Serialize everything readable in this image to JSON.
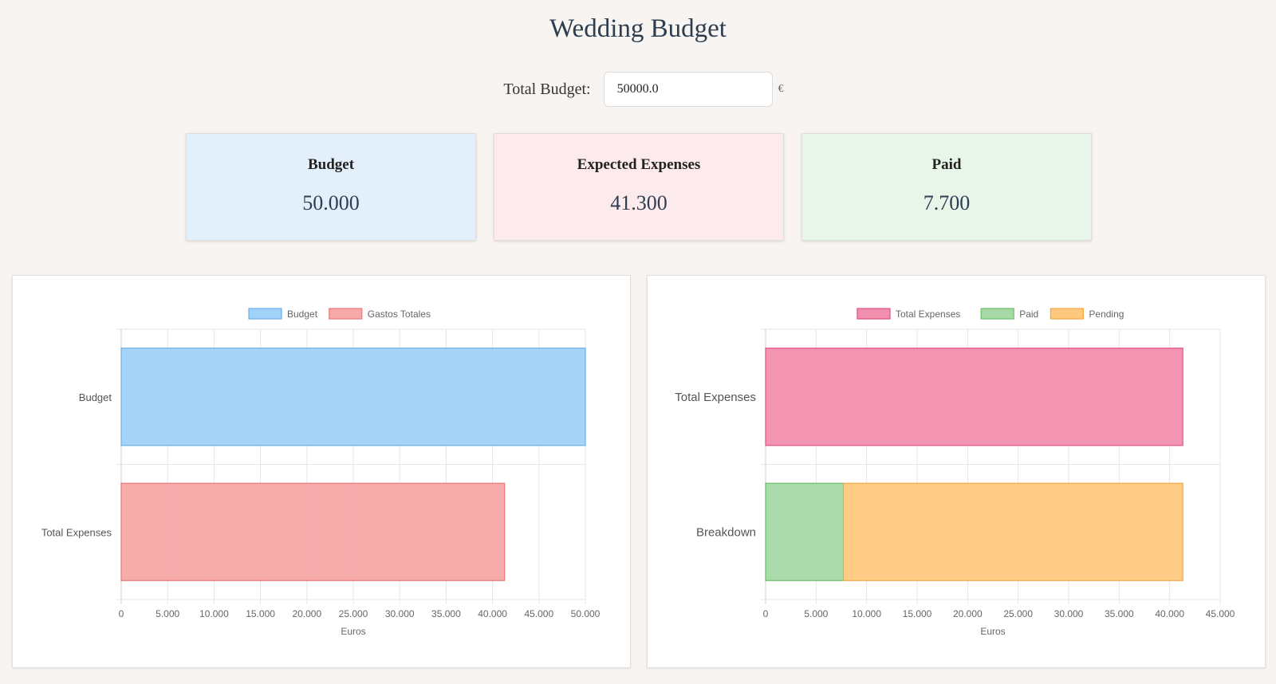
{
  "header": {
    "title": "Wedding Budget"
  },
  "budget_input": {
    "label": "Total Budget:",
    "value": "50000.0",
    "currency": "€"
  },
  "cards": [
    {
      "title": "Budget",
      "value": "50.000",
      "bg": "#e3f0fb"
    },
    {
      "title": "Expected Expenses",
      "value": "41.300",
      "bg": "#fdeaec"
    },
    {
      "title": "Paid",
      "value": "7.700",
      "bg": "#e8f5e9"
    }
  ],
  "chart_data": [
    {
      "type": "bar",
      "orientation": "horizontal",
      "categories": [
        "Budget",
        "Total Expenses"
      ],
      "series": [
        {
          "name": "Budget",
          "values": [
            50000,
            null
          ],
          "fill": "#a1d2f8",
          "stroke": "#6aaee8"
        },
        {
          "name": "Gastos Totales",
          "values": [
            null,
            41300
          ],
          "fill": "#f7a8a8",
          "stroke": "#e87878"
        }
      ],
      "xlabel": "Euros",
      "xlim": [
        0,
        50000
      ],
      "xticks": [
        0,
        5000,
        10000,
        15000,
        20000,
        25000,
        30000,
        35000,
        40000,
        45000,
        50000
      ],
      "xtick_labels": [
        "0",
        "5.000",
        "10.000",
        "15.000",
        "20.000",
        "25.000",
        "30.000",
        "35.000",
        "40.000",
        "45.000",
        "50.000"
      ],
      "grid": true,
      "legend": "top"
    },
    {
      "type": "bar",
      "orientation": "horizontal",
      "stacked": true,
      "categories": [
        "Total Expenses",
        "Breakdown"
      ],
      "series": [
        {
          "name": "Total Expenses",
          "values": [
            41300,
            null
          ],
          "fill": "#f28fae",
          "stroke": "#e0527f"
        },
        {
          "name": "Paid",
          "values": [
            null,
            7700
          ],
          "fill": "#a6d9a6",
          "stroke": "#6cbf6c"
        },
        {
          "name": "Pending",
          "values": [
            null,
            33600
          ],
          "fill": "#fec97e",
          "stroke": "#f5a742"
        }
      ],
      "xlabel": "Euros",
      "xlim": [
        0,
        45000
      ],
      "xticks": [
        0,
        5000,
        10000,
        15000,
        20000,
        25000,
        30000,
        35000,
        40000,
        45000
      ],
      "xtick_labels": [
        "0",
        "5.000",
        "10.000",
        "15.000",
        "20.000",
        "25.000",
        "30.000",
        "35.000",
        "40.000",
        "45.000"
      ],
      "grid": true,
      "legend": "top"
    }
  ]
}
